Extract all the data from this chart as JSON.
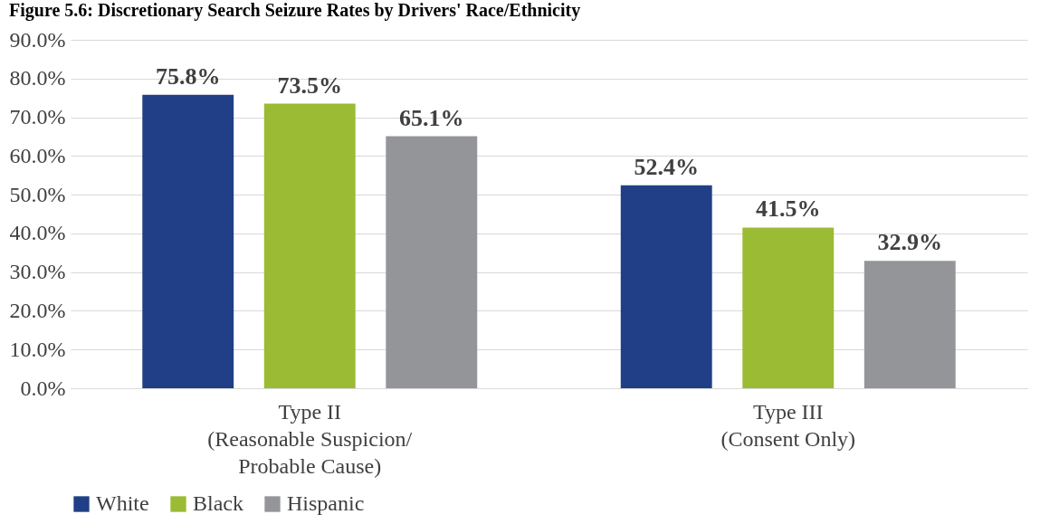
{
  "chart_data": {
    "type": "bar",
    "title": "Figure 5.6: Discretionary Search Seizure Rates by Drivers' Race/Ethnicity",
    "categories": [
      "Type II\n(Reasonable Suspicion/\nProbable Cause)",
      "Type III\n(Consent Only)"
    ],
    "series": [
      {
        "name": "White",
        "color": "#203f86",
        "values": [
          75.8,
          52.4
        ],
        "value_labels": [
          "75.8%",
          "52.4%"
        ]
      },
      {
        "name": "Black",
        "color": "#9bbb34",
        "values": [
          73.5,
          41.5
        ],
        "value_labels": [
          "73.5%",
          "41.5%"
        ]
      },
      {
        "name": "Hispanic",
        "color": "#939598",
        "values": [
          65.1,
          32.9
        ],
        "value_labels": [
          "65.1%",
          "32.9%"
        ]
      }
    ],
    "ylim": [
      0,
      90
    ],
    "yticks": [
      {
        "value": 0,
        "label": "0.0%"
      },
      {
        "value": 10,
        "label": "10.0%"
      },
      {
        "value": 20,
        "label": "20.0%"
      },
      {
        "value": 30,
        "label": "30.0%"
      },
      {
        "value": 40,
        "label": "40.0%"
      },
      {
        "value": 50,
        "label": "50.0%"
      },
      {
        "value": 60,
        "label": "60.0%"
      },
      {
        "value": 70,
        "label": "70.0%"
      },
      {
        "value": 80,
        "label": "80.0%"
      },
      {
        "value": 90,
        "label": "90.0%"
      }
    ],
    "grid": "y",
    "legend": "bottom"
  }
}
